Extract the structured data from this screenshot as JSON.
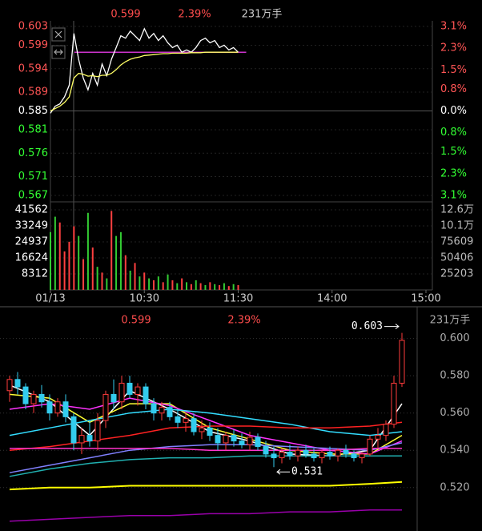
{
  "chart_data": [
    {
      "type": "line",
      "header": {
        "price": "0.599",
        "change": "2.39%",
        "volume": "231万手"
      },
      "x": [
        0,
        3,
        6,
        9,
        12,
        15,
        18,
        21,
        24,
        27,
        30,
        33,
        36,
        39,
        42,
        45,
        48,
        51,
        54,
        57,
        60,
        63,
        66,
        69,
        72,
        75,
        78,
        81,
        84,
        87,
        90,
        93,
        96,
        99,
        102,
        105,
        108,
        111,
        114,
        117,
        120
      ],
      "xlim": [
        0,
        240
      ],
      "ylim": [
        0.567,
        0.603
      ],
      "yticks": [
        0.603,
        0.599,
        0.594,
        0.589,
        0.585,
        0.581,
        0.576,
        0.571,
        0.567
      ],
      "prev_close": 0.585,
      "tick_colors": {
        "up": "#ff5555",
        "flat": "#ffffff",
        "down": "#33ff33"
      },
      "y2lim": [
        -3.1,
        3.1
      ],
      "y2ticks": [
        {
          "value": 3.1,
          "label": "3.1%"
        },
        {
          "value": 2.3,
          "label": "2.3%"
        },
        {
          "value": 1.5,
          "label": "1.5%"
        },
        {
          "value": 0.8,
          "label": "0.8%"
        },
        {
          "value": 0,
          "label": "0.0%"
        },
        {
          "value": -0.8,
          "label": "0.8%"
        },
        {
          "value": -1.5,
          "label": "1.5%"
        },
        {
          "value": -2.3,
          "label": "2.3%"
        },
        {
          "value": -3.1,
          "label": "3.1%"
        }
      ],
      "hline": {
        "value": 0.5975,
        "color": "#cc33cc"
      },
      "series": [
        {
          "color": "#ffffff",
          "values": [
            0.5845,
            0.586,
            0.5865,
            0.588,
            0.5905,
            0.6015,
            0.596,
            0.592,
            0.5895,
            0.593,
            0.5905,
            0.595,
            0.5925,
            0.596,
            0.5985,
            0.601,
            0.6005,
            0.602,
            0.601,
            0.6,
            0.6025,
            0.6005,
            0.6015,
            0.6,
            0.601,
            0.5995,
            0.5985,
            0.599,
            0.5975,
            0.598,
            0.5975,
            0.5985,
            0.6,
            0.6005,
            0.5995,
            0.6,
            0.5985,
            0.599,
            0.598,
            0.5985,
            0.5975
          ]
        },
        {
          "color": "#ffff66",
          "values": [
            0.585,
            0.5855,
            0.586,
            0.5868,
            0.588,
            0.592,
            0.593,
            0.5928,
            0.5924,
            0.5925,
            0.5923,
            0.5926,
            0.5926,
            0.593,
            0.5938,
            0.5948,
            0.5955,
            0.596,
            0.5963,
            0.5965,
            0.5968,
            0.5969,
            0.597,
            0.5971,
            0.5972,
            0.5972,
            0.5973,
            0.5973,
            0.5973,
            0.5973,
            0.5974,
            0.5974,
            0.5974,
            0.5975,
            0.5975,
            0.5975,
            0.5975,
            0.5975,
            0.5975,
            0.5975,
            0.5975
          ]
        }
      ]
    },
    {
      "type": "bar",
      "x": [
        0,
        3,
        6,
        9,
        12,
        15,
        18,
        21,
        24,
        27,
        30,
        33,
        36,
        39,
        42,
        45,
        48,
        51,
        54,
        57,
        60,
        63,
        66,
        69,
        72,
        75,
        78,
        81,
        84,
        87,
        90,
        93,
        96,
        99,
        102,
        105,
        108,
        111,
        114,
        117,
        120
      ],
      "xlim": [
        0,
        240
      ],
      "xticks": [
        {
          "value": 0,
          "label": "01/13"
        },
        {
          "value": 60,
          "label": "10:30"
        },
        {
          "value": 120,
          "label": "11:30"
        },
        {
          "value": 180,
          "label": "14:00"
        },
        {
          "value": 240,
          "label": "15:00"
        }
      ],
      "values": [
        30000,
        38000,
        35000,
        20000,
        25000,
        33000,
        28000,
        16000,
        40000,
        22000,
        12000,
        9000,
        6000,
        41000,
        28000,
        30000,
        18000,
        10000,
        14000,
        7000,
        9000,
        6000,
        5000,
        7000,
        4000,
        8000,
        5000,
        3500,
        6000,
        4000,
        3000,
        5000,
        3500,
        2500,
        4000,
        3000,
        2500,
        3500,
        2000,
        3000,
        2500
      ],
      "colors": [
        "#33cc33",
        "#33cc33",
        "#ff4040",
        "#ff4040",
        "#ff4040",
        "#ff4040",
        "#33cc33",
        "#ff4040",
        "#33cc33",
        "#ff4040",
        "#33cc33",
        "#ff4040",
        "#33cc33",
        "#ff4040",
        "#33cc33",
        "#33cc33",
        "#ff4040",
        "#33cc33",
        "#ff4040",
        "#33cc33",
        "#ff4040",
        "#33cc33",
        "#ff4040",
        "#33cc33",
        "#ff4040",
        "#33cc33",
        "#ff4040",
        "#33cc33",
        "#ff4040",
        "#33cc33",
        "#ff4040",
        "#33cc33",
        "#ff4040",
        "#33cc33",
        "#ff4040",
        "#33cc33",
        "#ff4040",
        "#33cc33",
        "#ff4040",
        "#33cc33",
        "#ff4040"
      ],
      "ylim": [
        0,
        41562
      ],
      "yticks": [
        41562,
        33249,
        24937,
        16624,
        8312
      ],
      "y2lim": [
        0,
        126000
      ],
      "y2ticks": [
        {
          "value": 126000,
          "label": "12.6万"
        },
        {
          "value": 101000,
          "label": "10.1万"
        },
        75609,
        50406,
        25203
      ]
    },
    {
      "type": "candlestick",
      "header": {
        "price": "0.599",
        "change": "2.39%",
        "volume": "231万手"
      },
      "open": [
        0.572,
        0.578,
        0.574,
        0.565,
        0.57,
        0.566,
        0.56,
        0.566,
        0.558,
        0.544,
        0.548,
        0.545,
        0.556,
        0.57,
        0.566,
        0.576,
        0.57,
        0.574,
        0.565,
        0.56,
        0.563,
        0.558,
        0.555,
        0.557,
        0.55,
        0.552,
        0.548,
        0.544,
        0.548,
        0.545,
        0.543,
        0.547,
        0.542,
        0.538,
        0.536,
        0.539,
        0.537,
        0.54,
        0.538,
        0.536,
        0.539,
        0.537,
        0.54,
        0.538,
        0.536,
        0.538,
        0.546,
        0.548,
        0.554,
        0.576
      ],
      "high": [
        0.58,
        0.582,
        0.576,
        0.572,
        0.575,
        0.57,
        0.568,
        0.57,
        0.56,
        0.552,
        0.556,
        0.56,
        0.572,
        0.578,
        0.58,
        0.58,
        0.576,
        0.576,
        0.568,
        0.566,
        0.566,
        0.562,
        0.56,
        0.56,
        0.556,
        0.555,
        0.552,
        0.55,
        0.551,
        0.549,
        0.55,
        0.549,
        0.545,
        0.542,
        0.541,
        0.543,
        0.542,
        0.543,
        0.541,
        0.54,
        0.542,
        0.541,
        0.543,
        0.54,
        0.539,
        0.548,
        0.552,
        0.556,
        0.58,
        0.603
      ],
      "low": [
        0.566,
        0.57,
        0.562,
        0.56,
        0.563,
        0.556,
        0.558,
        0.555,
        0.54,
        0.538,
        0.542,
        0.54,
        0.552,
        0.562,
        0.562,
        0.568,
        0.564,
        0.562,
        0.556,
        0.556,
        0.556,
        0.552,
        0.55,
        0.548,
        0.546,
        0.545,
        0.54,
        0.54,
        0.542,
        0.541,
        0.54,
        0.54,
        0.536,
        0.531,
        0.533,
        0.535,
        0.534,
        0.536,
        0.534,
        0.533,
        0.535,
        0.534,
        0.536,
        0.534,
        0.533,
        0.537,
        0.541,
        0.545,
        0.552,
        0.574
      ],
      "close": [
        0.578,
        0.574,
        0.565,
        0.57,
        0.566,
        0.56,
        0.566,
        0.558,
        0.544,
        0.548,
        0.545,
        0.556,
        0.57,
        0.566,
        0.576,
        0.57,
        0.574,
        0.565,
        0.56,
        0.563,
        0.558,
        0.555,
        0.557,
        0.55,
        0.552,
        0.548,
        0.544,
        0.548,
        0.545,
        0.543,
        0.547,
        0.542,
        0.538,
        0.536,
        0.539,
        0.537,
        0.54,
        0.538,
        0.536,
        0.539,
        0.537,
        0.54,
        0.538,
        0.536,
        0.538,
        0.546,
        0.548,
        0.554,
        0.576,
        0.599
      ],
      "colors": {
        "up": "#ff3b3b",
        "down": "#33ccee"
      },
      "ylim": [
        0.498,
        0.611
      ],
      "yticks": [
        {
          "value": 0.6,
          "label": "0.600"
        },
        {
          "value": 0.58,
          "label": "0.580"
        },
        {
          "value": 0.56,
          "label": "0.560"
        },
        {
          "value": 0.54,
          "label": "0.540"
        },
        {
          "value": 0.52,
          "label": "0.520"
        }
      ],
      "max": 0.603,
      "min": 0.531,
      "ma_x": [
        0,
        5,
        10,
        15,
        20,
        25,
        30,
        35,
        40,
        45,
        49
      ],
      "series": [
        {
          "color": "#ffffff",
          "values": [
            0.575,
            0.566,
            0.548,
            0.572,
            0.562,
            0.55,
            0.545,
            0.538,
            0.537,
            0.54,
            0.565
          ]
        },
        {
          "color": "#ffff33",
          "values": [
            0.57,
            0.568,
            0.555,
            0.565,
            0.565,
            0.552,
            0.546,
            0.54,
            0.538,
            0.538,
            0.548
          ]
        },
        {
          "color": "#ff33ff",
          "values": [
            0.562,
            0.565,
            0.562,
            0.568,
            0.564,
            0.556,
            0.548,
            0.544,
            0.54,
            0.538,
            0.545
          ]
        },
        {
          "color": "#33ddff",
          "values": [
            0.548,
            0.552,
            0.556,
            0.56,
            0.562,
            0.56,
            0.557,
            0.554,
            0.55,
            0.548,
            0.55
          ]
        },
        {
          "color": "#ff2222",
          "values": [
            0.54,
            0.542,
            0.545,
            0.548,
            0.552,
            0.553,
            0.553,
            0.552,
            0.552,
            0.553,
            0.555
          ]
        },
        {
          "color": "#8080ff",
          "values": [
            0.528,
            0.532,
            0.536,
            0.54,
            0.542,
            0.543,
            0.543,
            0.542,
            0.541,
            0.54,
            0.544
          ]
        },
        {
          "color": "#20b0b0",
          "values": [
            0.526,
            0.53,
            0.533,
            0.535,
            0.536,
            0.536,
            0.537,
            0.537,
            0.537,
            0.537,
            0.537
          ]
        },
        {
          "color": "#ff33cc",
          "values": [
            0.541,
            0.541,
            0.541,
            0.541,
            0.541,
            0.54,
            0.54,
            0.54,
            0.54,
            0.541,
            0.541
          ]
        },
        {
          "color": "#ffff00",
          "values": [
            0.519,
            0.52,
            0.52,
            0.521,
            0.521,
            0.521,
            0.521,
            0.521,
            0.521,
            0.522,
            0.523
          ]
        },
        {
          "color": "#9900aa",
          "values": [
            0.502,
            0.503,
            0.504,
            0.505,
            0.505,
            0.506,
            0.506,
            0.507,
            0.507,
            0.508,
            0.508
          ]
        }
      ]
    }
  ]
}
